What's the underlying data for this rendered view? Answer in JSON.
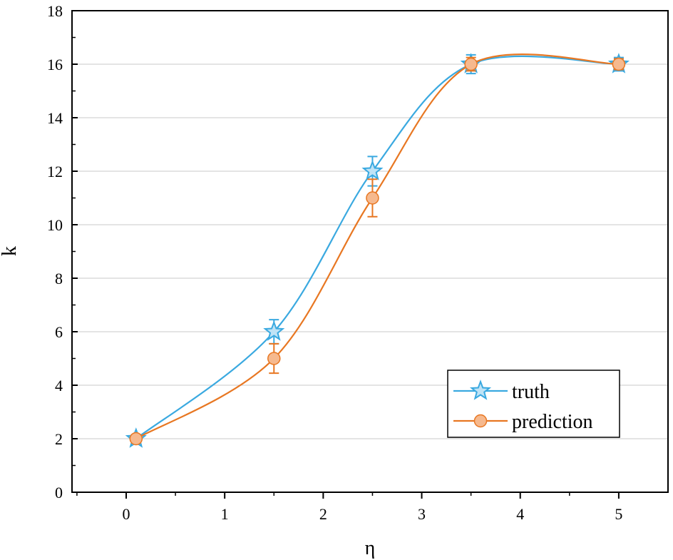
{
  "chart_data": {
    "type": "line",
    "title": "",
    "xlabel": "η",
    "ylabel": "k",
    "xlim": [
      -0.55,
      5.5
    ],
    "ylim": [
      0,
      18
    ],
    "xticks": [
      0,
      1,
      2,
      3,
      4,
      5
    ],
    "yticks": [
      0,
      2,
      4,
      6,
      8,
      10,
      12,
      14,
      16,
      18
    ],
    "xtick_labels": [
      "0",
      "1",
      "2",
      "3",
      "4",
      "5"
    ],
    "ytick_labels": [
      "0",
      "2",
      "4",
      "6",
      "8",
      "10",
      "12",
      "14",
      "16",
      "18"
    ],
    "grid": "horizontal",
    "legend_position": "bottom-right",
    "smooth": true,
    "series": [
      {
        "name": "truth",
        "marker": "star",
        "color": "#3aa9e0",
        "x": [
          0.1,
          1.5,
          2.5,
          3.5,
          5.0
        ],
        "y": [
          2,
          6,
          12,
          16,
          16
        ],
        "error": [
          0.15,
          0.45,
          0.55,
          0.35,
          0.25
        ]
      },
      {
        "name": "prediction",
        "marker": "circle",
        "color": "#e87722",
        "fill": "#f6b98e",
        "x": [
          0.1,
          1.5,
          2.5,
          3.5,
          5.0
        ],
        "y": [
          2,
          5,
          11,
          16,
          16
        ],
        "error": [
          0.15,
          0.55,
          0.7,
          0.25,
          0.2
        ]
      }
    ]
  }
}
